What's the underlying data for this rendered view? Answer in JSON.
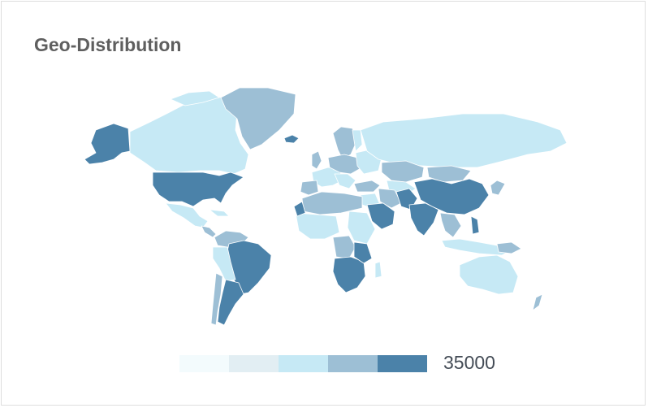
{
  "widget": {
    "title": "Geo-Distribution"
  },
  "legend": {
    "max_label": "35000",
    "colors": [
      "#f3fbfd",
      "#e2eef3",
      "#c6e9f5",
      "#9dbfd5",
      "#4b82a9"
    ]
  },
  "palette": {
    "lowest": "#f3fbfd",
    "low": "#e2eef3",
    "mid": "#c6e9f5",
    "high": "#9dbfd5",
    "highest": "#4b82a9",
    "border": "#ffffff",
    "title": "#5f5f5f",
    "legend_text": "#444c56"
  }
}
